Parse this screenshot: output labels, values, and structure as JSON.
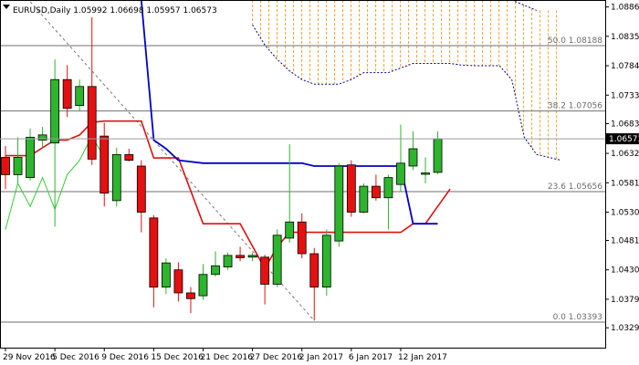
{
  "chart_data": {
    "type": "candlestick",
    "title": "EURUSD,Daily  1.05992 1.06698 1.05957 1.06573",
    "ylim": [
      1.0295,
      1.0898
    ],
    "y_ticks": [
      "1.08860",
      "1.08350",
      "1.07840",
      "1.07330",
      "1.06835",
      "1.06320",
      "1.05810",
      "1.05300",
      "1.04810",
      "1.04300",
      "1.03790",
      "1.03295"
    ],
    "y_tick_values": [
      1.0886,
      1.0835,
      1.0784,
      1.0733,
      1.06835,
      1.0632,
      1.0581,
      1.053,
      1.0481,
      1.043,
      1.0379,
      1.03295
    ],
    "last_price": {
      "label": "1.06573",
      "value": 1.06573
    },
    "x_labels": [
      {
        "label": "29 Nov 2016",
        "index": 0
      },
      {
        "label": "5 Dec 2016",
        "index": 4
      },
      {
        "label": "9 Dec 2016",
        "index": 8
      },
      {
        "label": "15 Dec 2016",
        "index": 12
      },
      {
        "label": "21 Dec 2016",
        "index": 16
      },
      {
        "label": "27 Dec 2016",
        "index": 20
      },
      {
        "label": "2 Jan 2017",
        "index": 24
      },
      {
        "label": "6 Jan 2017",
        "index": 28
      },
      {
        "label": "12 Jan 2017",
        "index": 32
      }
    ],
    "candles": [
      {
        "o": 1.0625,
        "h": 1.0645,
        "l": 1.057,
        "c": 1.0595
      },
      {
        "o": 1.0595,
        "h": 1.066,
        "l": 1.058,
        "c": 1.0625
      },
      {
        "o": 1.059,
        "h": 1.0675,
        "l": 1.0585,
        "c": 1.066
      },
      {
        "o": 1.0655,
        "h": 1.0678,
        "l": 1.064,
        "c": 1.0664
      },
      {
        "o": 1.065,
        "h": 1.0795,
        "l": 1.0505,
        "c": 1.076
      },
      {
        "o": 1.076,
        "h": 1.0785,
        "l": 1.0695,
        "c": 1.071
      },
      {
        "o": 1.0715,
        "h": 1.076,
        "l": 1.0705,
        "c": 1.0748
      },
      {
        "o": 1.0748,
        "h": 1.0868,
        "l": 1.0612,
        "c": 1.0622
      },
      {
        "o": 1.0662,
        "h": 1.0685,
        "l": 1.054,
        "c": 1.0563
      },
      {
        "o": 1.055,
        "h": 1.0642,
        "l": 1.054,
        "c": 1.063
      },
      {
        "o": 1.063,
        "h": 1.064,
        "l": 1.0618,
        "c": 1.062
      },
      {
        "o": 1.061,
        "h": 1.062,
        "l": 1.0495,
        "c": 1.053
      },
      {
        "o": 1.052,
        "h": 1.0525,
        "l": 1.0365,
        "c": 1.04
      },
      {
        "o": 1.04,
        "h": 1.045,
        "l": 1.0388,
        "c": 1.0442
      },
      {
        "o": 1.043,
        "h": 1.0443,
        "l": 1.0375,
        "c": 1.039
      },
      {
        "o": 1.039,
        "h": 1.04,
        "l": 1.0355,
        "c": 1.038
      },
      {
        "o": 1.0385,
        "h": 1.044,
        "l": 1.0378,
        "c": 1.0422
      },
      {
        "o": 1.0422,
        "h": 1.0462,
        "l": 1.0418,
        "c": 1.0437
      },
      {
        "o": 1.0435,
        "h": 1.046,
        "l": 1.043,
        "c": 1.0455
      },
      {
        "o": 1.0455,
        "h": 1.047,
        "l": 1.0445,
        "c": 1.0451
      },
      {
        "o": 1.0452,
        "h": 1.046,
        "l": 1.0445,
        "c": 1.0455
      },
      {
        "o": 1.0452,
        "h": 1.0456,
        "l": 1.037,
        "c": 1.0405
      },
      {
        "o": 1.0405,
        "h": 1.05,
        "l": 1.04,
        "c": 1.049
      },
      {
        "o": 1.0485,
        "h": 1.0648,
        "l": 1.0477,
        "c": 1.0513
      },
      {
        "o": 1.0513,
        "h": 1.0528,
        "l": 1.045,
        "c": 1.0458
      },
      {
        "o": 1.0458,
        "h": 1.0468,
        "l": 1.0342,
        "c": 1.04
      },
      {
        "o": 1.04,
        "h": 1.05,
        "l": 1.0385,
        "c": 1.049
      },
      {
        "o": 1.048,
        "h": 1.0615,
        "l": 1.047,
        "c": 1.061
      },
      {
        "o": 1.0612,
        "h": 1.062,
        "l": 1.0522,
        "c": 1.053
      },
      {
        "o": 1.053,
        "h": 1.058,
        "l": 1.0528,
        "c": 1.0575
      },
      {
        "o": 1.0575,
        "h": 1.0595,
        "l": 1.055,
        "c": 1.0555
      },
      {
        "o": 1.0555,
        "h": 1.0595,
        "l": 1.05,
        "c": 1.059
      },
      {
        "o": 1.0578,
        "h": 1.0682,
        "l": 1.0565,
        "c": 1.0615
      },
      {
        "o": 1.061,
        "h": 1.067,
        "l": 1.0603,
        "c": 1.064
      },
      {
        "o": 1.0598,
        "h": 1.0625,
        "l": 1.058,
        "c": 1.0598
      },
      {
        "o": 1.0599,
        "h": 1.067,
        "l": 1.0596,
        "c": 1.0657
      }
    ],
    "colors": {
      "bull": "#2db52d",
      "bear": "#e51010",
      "grid": "#9e9e9e",
      "kijun": "#e01010",
      "tenkan": "#0000cc",
      "chikou": "#33cc33",
      "cloud": "#f0a030",
      "cloud_edge": "#000080",
      "trend": "#777777",
      "fib_line": "#6f6f6f"
    },
    "kijun": [
      [
        0,
        1.0628
      ],
      [
        2,
        1.0628
      ],
      [
        3,
        1.0642
      ],
      [
        4,
        1.0655
      ],
      [
        5,
        1.0655
      ],
      [
        6,
        1.0664
      ],
      [
        7,
        1.0686
      ],
      [
        8,
        1.0688
      ],
      [
        9,
        1.0688
      ],
      [
        11,
        1.0688
      ],
      [
        12,
        1.0624
      ],
      [
        14,
        1.0624
      ],
      [
        16,
        1.051
      ],
      [
        19,
        1.051
      ],
      [
        21,
        1.0432
      ],
      [
        22,
        1.047
      ],
      [
        23,
        1.0495
      ],
      [
        26,
        1.0495
      ],
      [
        28,
        1.0495
      ],
      [
        32,
        1.0495
      ],
      [
        33,
        1.051
      ],
      [
        34,
        1.051
      ],
      [
        35,
        1.054
      ],
      [
        36,
        1.057
      ]
    ],
    "tenkan": [
      [
        11,
        1.0898
      ],
      [
        12,
        1.0655
      ],
      [
        13,
        1.064
      ],
      [
        14,
        1.062
      ],
      [
        16,
        1.0615
      ],
      [
        24,
        1.0615
      ],
      [
        25,
        1.061
      ],
      [
        31,
        1.061
      ],
      [
        32,
        1.061
      ],
      [
        33,
        1.051
      ],
      [
        35,
        1.051
      ]
    ],
    "chikou": [
      [
        0,
        1.05
      ],
      [
        1,
        1.058
      ],
      [
        2,
        1.054
      ],
      [
        3,
        1.059
      ],
      [
        4,
        1.0535
      ],
      [
        5,
        1.0595
      ],
      [
        6,
        1.062
      ],
      [
        7,
        1.0662
      ],
      [
        8,
        1.0625
      ]
    ],
    "cloud_top": [
      [
        20,
        1.0898
      ],
      [
        41,
        1.0898
      ],
      [
        43,
        1.088
      ]
    ],
    "cloud_bottom": [
      [
        20,
        1.0855
      ],
      [
        21,
        1.082
      ],
      [
        22,
        1.0795
      ],
      [
        23,
        1.0775
      ],
      [
        24,
        1.076
      ],
      [
        25,
        1.0752
      ],
      [
        27,
        1.0752
      ],
      [
        28,
        1.076
      ],
      [
        29,
        1.0772
      ],
      [
        31,
        1.0772
      ],
      [
        33,
        1.0788
      ],
      [
        36,
        1.0788
      ],
      [
        37,
        1.0785
      ],
      [
        38,
        1.0784
      ],
      [
        40,
        1.0784
      ],
      [
        41,
        1.076
      ],
      [
        42,
        1.066
      ],
      [
        43,
        1.063
      ],
      [
        44,
        1.0625
      ],
      [
        45,
        1.062
      ]
    ],
    "trendline": [
      [
        2,
        1.0895
      ],
      [
        25,
        1.0342
      ]
    ],
    "fib_levels": [
      {
        "label": "50.0 1.08188",
        "value": 1.08188
      },
      {
        "label": "38.2 1.07056",
        "value": 1.07056
      },
      {
        "label": "23.6 1.05656",
        "value": 1.05656
      },
      {
        "label": "0.0 1.03393",
        "value": 1.03393
      }
    ]
  }
}
